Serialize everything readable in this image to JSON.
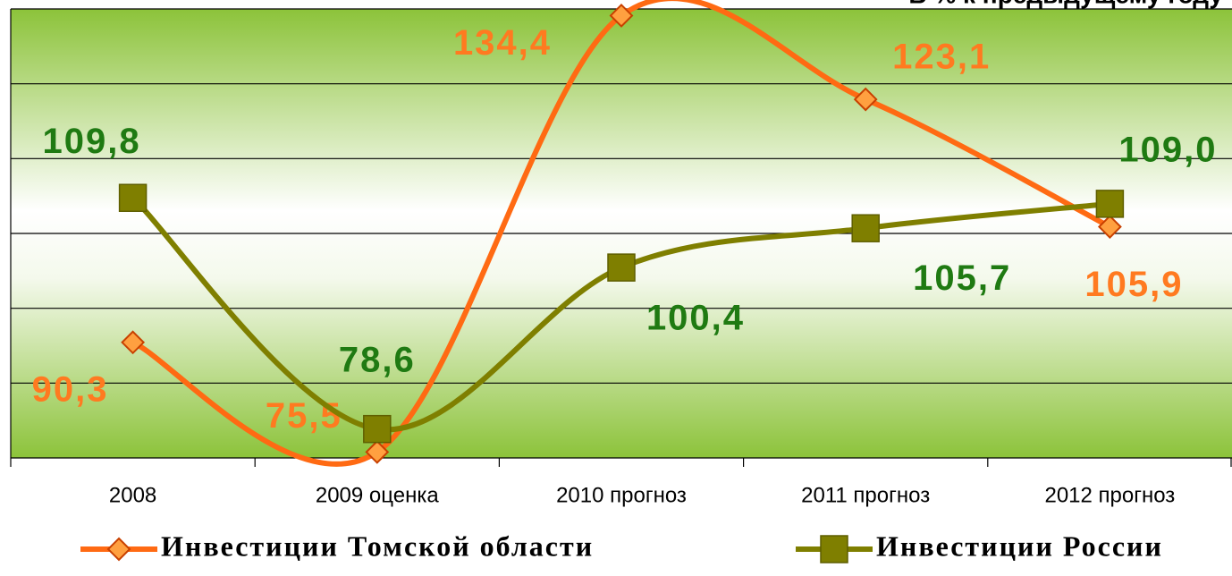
{
  "chart_data": {
    "type": "line",
    "subtitle": "В % к предыдущему году",
    "categories": [
      "2008",
      "2009 оценка",
      "2010 прогноз",
      "2011 прогноз",
      "2012 прогноз"
    ],
    "series": [
      {
        "name": "Инвестиции Томской области",
        "color": "#ff6a13",
        "values": [
          90.3,
          75.5,
          134.4,
          123.1,
          105.9
        ],
        "value_labels": [
          "90,3",
          "75,5",
          "134,4",
          "123,1",
          "105,9"
        ],
        "label_color": "#ff7a20",
        "marker": "diamond"
      },
      {
        "name": "Инвестиции России",
        "color": "#7f7f00",
        "values": [
          109.8,
          78.6,
          100.4,
          105.7,
          109.0
        ],
        "value_labels": [
          "109,8",
          "78,6",
          "100,4",
          "105,7",
          "109,0"
        ],
        "label_color": "#1f7a12",
        "marker": "square"
      }
    ],
    "ylim": [
      74.7,
      135.3
    ],
    "yticks": [
      74.7,
      84.8,
      94.9,
      105,
      115.1,
      125.2,
      135.3
    ],
    "grid": true
  }
}
